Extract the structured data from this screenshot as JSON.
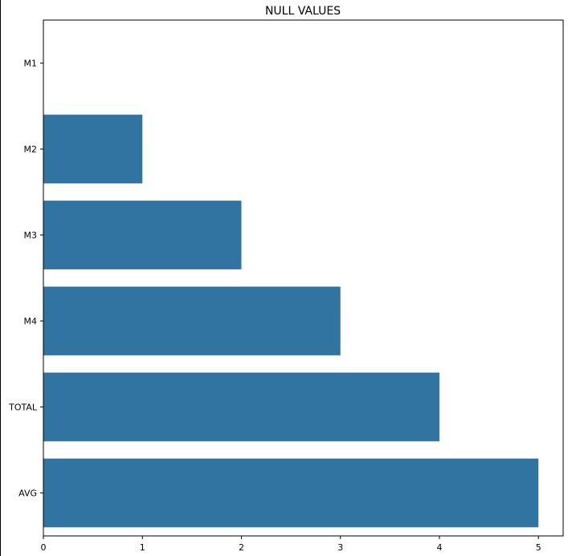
{
  "chart_data": {
    "type": "bar",
    "orientation": "horizontal",
    "title": "NULL VALUES",
    "categories": [
      "M1",
      "M2",
      "M3",
      "M4",
      "TOTAL",
      "AVG"
    ],
    "values": [
      0,
      1,
      2,
      3,
      4,
      5
    ],
    "xlim": [
      0,
      5.25
    ],
    "xticks": [
      "0",
      "1",
      "2",
      "3",
      "4",
      "5"
    ],
    "xlabel": "",
    "ylabel": "",
    "grid": false,
    "bar_color": "#3274a1"
  }
}
